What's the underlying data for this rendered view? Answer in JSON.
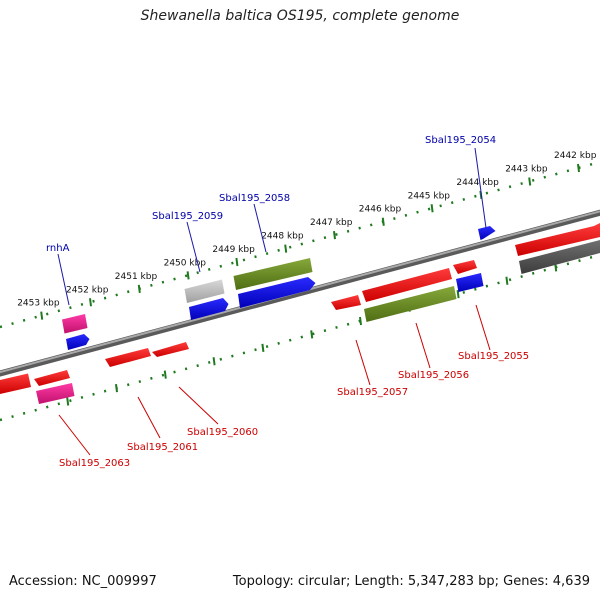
{
  "title": "Shewanella baltica OS195, complete genome",
  "footer": {
    "accession": "Accession: NC_009997",
    "summary": "Topology: circular; Length: 5,347,283 bp; Genes: 4,639"
  },
  "colors": {
    "backbone": "#7a7a7a",
    "scale_ticks": "#1f7a1f",
    "gene_red": "#ff0000",
    "gene_blue": "#0000ee",
    "gene_magenta": "#ee1c8c",
    "gene_olive": "#6b8e23",
    "gene_gray": "#b8b8b8",
    "gene_darkgray": "#5a5a5a",
    "label_forward": "#0000aa",
    "label_reverse": "#cc0000"
  },
  "scale": {
    "unit": "kbp",
    "ticks": [
      {
        "label": "2442 kbp",
        "kbp": 2442
      },
      {
        "label": "2443 kbp",
        "kbp": 2443
      },
      {
        "label": "2444 kbp",
        "kbp": 2444
      },
      {
        "label": "2445 kbp",
        "kbp": 2445
      },
      {
        "label": "2446 kbp",
        "kbp": 2446
      },
      {
        "label": "2447 kbp",
        "kbp": 2447
      },
      {
        "label": "2448 kbp",
        "kbp": 2448
      },
      {
        "label": "2449 kbp",
        "kbp": 2449
      },
      {
        "label": "2450 kbp",
        "kbp": 2450
      },
      {
        "label": "2451 kbp",
        "kbp": 2451
      },
      {
        "label": "2452 kbp",
        "kbp": 2452
      },
      {
        "label": "2453 kbp",
        "kbp": 2453
      }
    ]
  },
  "genes": [
    {
      "label": "Sbal195_2054",
      "strand": "forward",
      "color": "blue"
    },
    {
      "label": "Sbal195_2058",
      "strand": "forward",
      "color": "blue"
    },
    {
      "label": "Sbal195_2059",
      "strand": "forward",
      "color": "gray"
    },
    {
      "label": "rnhA",
      "strand": "forward",
      "color": "magenta"
    },
    {
      "label": "Sbal195_2055",
      "strand": "reverse",
      "color": "blue"
    },
    {
      "label": "Sbal195_2056",
      "strand": "reverse",
      "color": "olive"
    },
    {
      "label": "Sbal195_2057",
      "strand": "reverse",
      "color": "red"
    },
    {
      "label": "Sbal195_2060",
      "strand": "reverse",
      "color": "red"
    },
    {
      "label": "Sbal195_2061",
      "strand": "reverse",
      "color": "red"
    },
    {
      "label": "Sbal195_2063",
      "strand": "reverse",
      "color": "magenta"
    }
  ]
}
